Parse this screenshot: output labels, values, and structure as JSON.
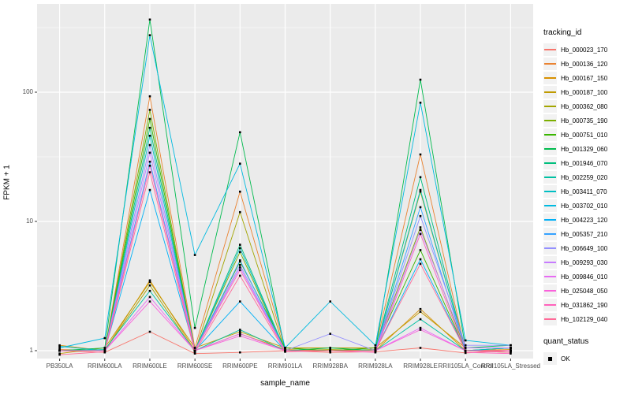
{
  "chart_data": {
    "type": "line",
    "title": "",
    "xlabel": "sample_name",
    "ylabel": "FPKM + 1",
    "y_scale": "log10",
    "ylim": [
      0.87,
      480
    ],
    "y_ticks": [
      1,
      10,
      100
    ],
    "y_minor_ticks": [
      3.162,
      31.62,
      316.2
    ],
    "grid": "on",
    "panel_bg": "#EBEBEB",
    "grid_color": "#FFFFFF",
    "point_marker": {
      "shape": "square",
      "color": "#000000"
    },
    "legend_title": "tracking_id",
    "legend_position": "right",
    "quant_legend": {
      "title": "quant_status",
      "label": "OK"
    },
    "categories": [
      "PB350LA",
      "RRIM600LA",
      "RRIM600LE",
      "RRIM600SE",
      "RRIM600PE",
      "RRIM901LA",
      "RRIM928BA",
      "RRIM928LA",
      "RRIM928LE",
      "RRII105LA_Control",
      "RRII105LA_Stressed"
    ],
    "series": [
      {
        "name": "Hb_000023_170",
        "color": "#F8766D",
        "values": [
          1.0,
          0.97,
          1.4,
          0.95,
          0.97,
          1.0,
          0.97,
          0.98,
          1.05,
          0.96,
          1.0
        ]
      },
      {
        "name": "Hb_000136_120",
        "color": "#EA8331",
        "values": [
          1.02,
          1.0,
          93,
          1.05,
          17,
          1.05,
          1.0,
          1.05,
          33,
          1.0,
          1.05
        ]
      },
      {
        "name": "Hb_000167_150",
        "color": "#D89000",
        "values": [
          1.1,
          1.0,
          3.5,
          1.0,
          1.35,
          1.02,
          1.0,
          1.0,
          2.1,
          1.0,
          1.02
        ]
      },
      {
        "name": "Hb_000187_100",
        "color": "#C09B00",
        "values": [
          0.95,
          1.05,
          3.4,
          1.05,
          1.4,
          1.05,
          1.05,
          1.05,
          2.0,
          1.05,
          1.05
        ]
      },
      {
        "name": "Hb_000362_080",
        "color": "#A3A500",
        "values": [
          1.0,
          1.0,
          3.2,
          0.98,
          11.8,
          1.0,
          1.02,
          1.0,
          17,
          1.0,
          0.97
        ]
      },
      {
        "name": "Hb_000735_190",
        "color": "#7CAE00",
        "values": [
          1.0,
          1.0,
          73,
          1.0,
          5.8,
          1.0,
          1.0,
          1.02,
          9.0,
          1.0,
          1.0
        ]
      },
      {
        "name": "Hb_000751_010",
        "color": "#39B600",
        "values": [
          1.0,
          1.0,
          62,
          1.0,
          4.9,
          1.05,
          1.0,
          1.05,
          6.0,
          1.0,
          1.0
        ]
      },
      {
        "name": "Hb_001329_060",
        "color": "#00BB4E",
        "values": [
          1.0,
          1.05,
          365,
          1.5,
          49,
          1.0,
          1.05,
          1.0,
          125,
          1.05,
          1.1
        ]
      },
      {
        "name": "Hb_001946_070",
        "color": "#00BF7D",
        "values": [
          1.0,
          1.0,
          53,
          1.0,
          6.6,
          1.0,
          1.0,
          1.0,
          22,
          1.0,
          1.05
        ]
      },
      {
        "name": "Hb_002259_020",
        "color": "#00C1A3",
        "values": [
          1.0,
          1.02,
          2.9,
          1.0,
          1.45,
          1.0,
          1.0,
          1.0,
          1.75,
          1.0,
          1.0
        ]
      },
      {
        "name": "Hb_003411_070",
        "color": "#00BFC4",
        "values": [
          1.08,
          1.0,
          46,
          1.0,
          6.2,
          1.0,
          1.0,
          1.0,
          17.5,
          1.0,
          1.05
        ]
      },
      {
        "name": "Hb_003702_010",
        "color": "#00BAE0",
        "values": [
          1.05,
          1.25,
          276,
          5.5,
          28,
          1.05,
          2.4,
          1.1,
          83,
          1.2,
          1.1
        ]
      },
      {
        "name": "Hb_004223_120",
        "color": "#00B0F6",
        "values": [
          1.0,
          1.0,
          17.5,
          1.0,
          2.4,
          1.0,
          1.0,
          1.0,
          5.1,
          1.0,
          1.0
        ]
      },
      {
        "name": "Hb_005357_210",
        "color": "#35A2FF",
        "values": [
          1.0,
          1.0,
          29,
          1.0,
          5.0,
          1.0,
          1.0,
          1.0,
          12.9,
          1.0,
          1.0
        ]
      },
      {
        "name": "Hb_006649_100",
        "color": "#9590FF",
        "values": [
          1.0,
          1.0,
          39,
          1.0,
          4.6,
          1.0,
          1.35,
          1.0,
          11,
          1.1,
          1.1
        ]
      },
      {
        "name": "Hb_009293_030",
        "color": "#C77CFF",
        "values": [
          1.0,
          1.0,
          34,
          1.0,
          4.4,
          1.0,
          1.0,
          1.0,
          8.6,
          1.05,
          1.05
        ]
      },
      {
        "name": "Hb_009846_010",
        "color": "#E76BF3",
        "values": [
          1.0,
          1.0,
          2.6,
          1.0,
          1.35,
          1.0,
          1.0,
          1.0,
          1.5,
          1.0,
          1.0
        ]
      },
      {
        "name": "Hb_025048_050",
        "color": "#FA62DB",
        "values": [
          1.0,
          1.0,
          2.4,
          1.0,
          1.3,
          1.0,
          1.0,
          1.0,
          1.45,
          1.0,
          1.0
        ]
      },
      {
        "name": "Hb_031862_190",
        "color": "#FF62BC",
        "values": [
          1.0,
          1.0,
          27,
          1.0,
          4.2,
          1.0,
          1.0,
          0.97,
          8.0,
          0.97,
          0.95
        ]
      },
      {
        "name": "Hb_102129_040",
        "color": "#FF6A98",
        "values": [
          0.93,
          0.98,
          24,
          0.97,
          3.8,
          0.98,
          1.0,
          1.0,
          4.7,
          1.0,
          0.97
        ]
      }
    ]
  }
}
